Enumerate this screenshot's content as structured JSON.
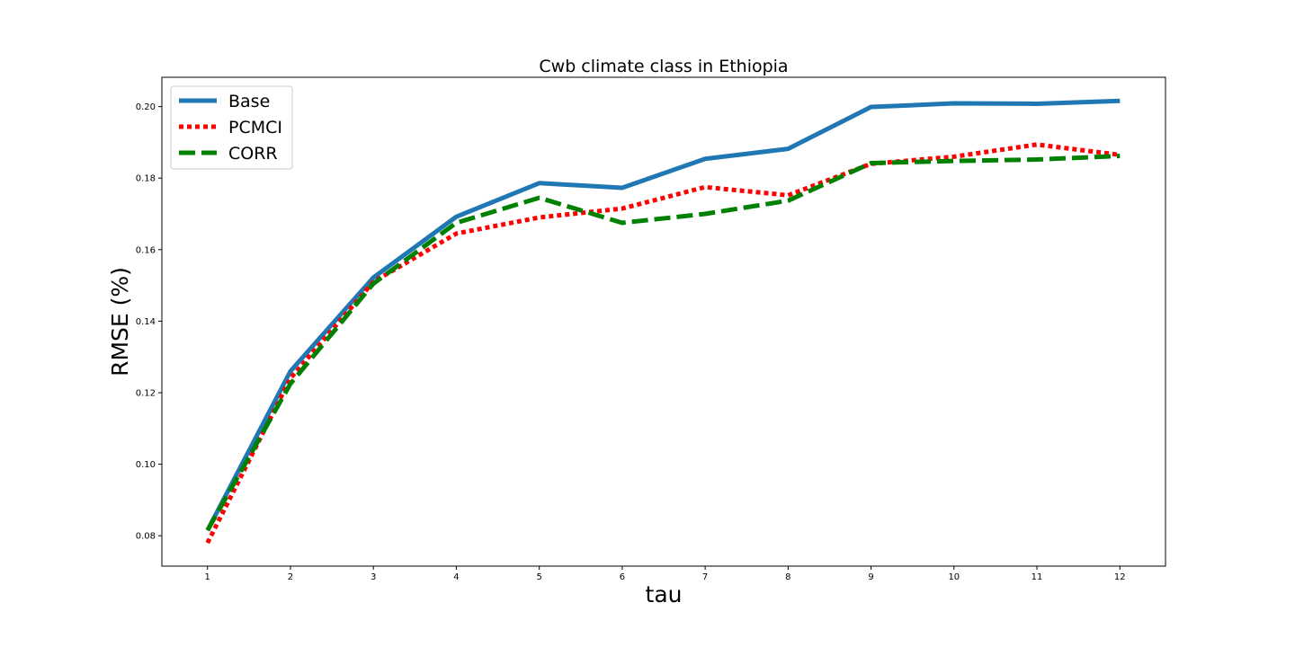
{
  "chart_data": {
    "type": "line",
    "title": "Cwb climate class in Ethiopia",
    "xlabel": "tau",
    "ylabel": "RMSE (%)",
    "x": [
      1,
      2,
      3,
      4,
      5,
      6,
      7,
      8,
      9,
      10,
      11,
      12
    ],
    "xlim": [
      0.45,
      12.55
    ],
    "ylim": [
      0.0715,
      0.2082
    ],
    "yticks": [
      0.08,
      0.1,
      0.12,
      0.14,
      0.16,
      0.18,
      0.2
    ],
    "ytick_labels": [
      "0.08",
      "0.10",
      "0.12",
      "0.14",
      "0.16",
      "0.18",
      "0.20"
    ],
    "grid": false,
    "legend": "upper-left",
    "series": [
      {
        "name": "Base",
        "color": "#1f77b4",
        "style": "solid",
        "values": [
          0.0815,
          0.126,
          0.1522,
          0.1692,
          0.1786,
          0.1773,
          0.1854,
          0.1882,
          0.1999,
          0.2009,
          0.2008,
          0.2016
        ]
      },
      {
        "name": "PCMCI",
        "color": "#ff0000",
        "style": "dotted",
        "values": [
          0.078,
          0.124,
          0.151,
          0.1645,
          0.169,
          0.1715,
          0.1775,
          0.1752,
          0.184,
          0.186,
          0.1894,
          0.1865
        ]
      },
      {
        "name": "CORR",
        "color": "#008000",
        "style": "dashed",
        "values": [
          0.0815,
          0.1225,
          0.1505,
          0.1675,
          0.1745,
          0.1675,
          0.17,
          0.1737,
          0.1842,
          0.1848,
          0.1852,
          0.1862
        ]
      }
    ]
  }
}
